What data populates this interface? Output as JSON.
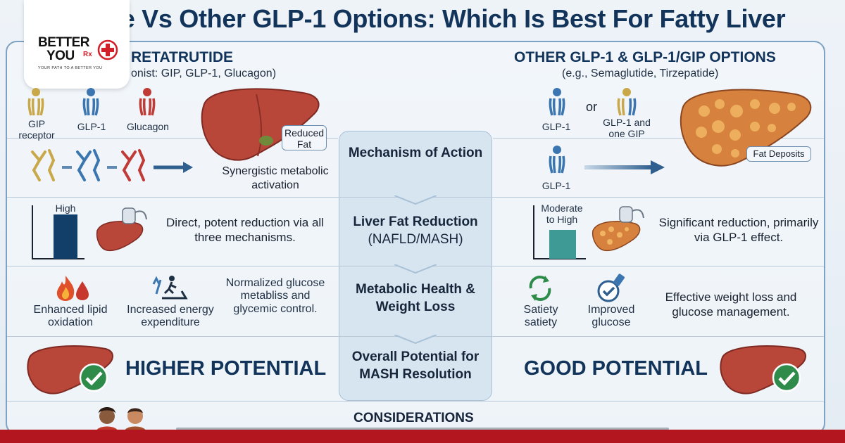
{
  "title": "de Vs Other GLP-1 Options: Which Is Best For Fatty Liver",
  "logo": {
    "line1": "BETTER",
    "line2": "YOU",
    "rx": "Rx",
    "tagline": "YOUR PATH TO A BETTER YOU"
  },
  "left": {
    "heading": "RETATRUTIDE",
    "subheading": "onist: GIP, GLP-1, Glucagon)",
    "receptors": [
      "GIP receptor",
      "GLP-1",
      "Glucagon"
    ],
    "liver_callout": "Reduced Fat",
    "mechanism_text": "Synergistic metabolic activation",
    "bar_label": "High",
    "bar_level": 0.85,
    "fat_text": "Direct, potent reduction via all three mechanisms.",
    "metabolic_items": [
      "Enhanced lipid oxidation",
      "Increased energy expenditure",
      "Normalized glucose metabliss and glycemic control."
    ],
    "potential": "HIGHER POTENTIAL"
  },
  "right": {
    "heading": "OTHER GLP-1 & GLP-1/GIP OPTIONS",
    "subheading": "(e.g., Semaglutide, Tirzepatide)",
    "receptors": [
      "GLP-1",
      "GLP-1 and one GIP",
      "GLP-1"
    ],
    "or_label": "or",
    "liver_callout": "Fat Deposits",
    "bar_label": "Moderate to High",
    "bar_level": 0.55,
    "fat_text": "Significant reduction, primarily via GLP-1 effect.",
    "metabolic_items": [
      "Satiety satiety",
      "Improved glucose"
    ],
    "metabolic_text": "Effective weight loss and glucose management.",
    "potential": "GOOD POTENTIAL"
  },
  "center": {
    "rows": [
      {
        "title": "Mechanism of Action",
        "sub": ""
      },
      {
        "title": "Liver Fat Reduction",
        "sub": "(NAFLD/MASH)"
      },
      {
        "title": "Metabolic Health & Weight Loss",
        "sub": ""
      },
      {
        "title": "Overall Potential for MASH Resolution",
        "sub": ""
      }
    ]
  },
  "considerations": "CONSIDERATIONS",
  "colors": {
    "navy": "#12345a",
    "accent_red": "#b3161e",
    "liver": "#b8473a",
    "check_green": "#2e8b4a",
    "bar_navy": "#123e6a",
    "bar_teal": "#3d9a94"
  },
  "icons": [
    "receptor-icon",
    "liver-icon",
    "ultrasound-icon",
    "flame-icon",
    "treadmill-icon",
    "recycle-arrows-icon",
    "glucose-meter-icon",
    "checkmark-icon",
    "person-icon"
  ]
}
